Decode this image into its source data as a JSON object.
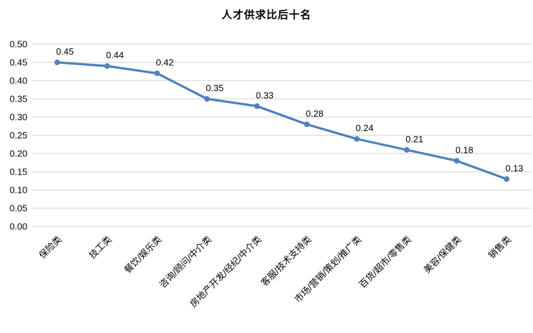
{
  "chart_data": {
    "type": "line",
    "title": "人才供求比后十名",
    "categories": [
      "保险类",
      "技工类",
      "餐饮/娱乐类",
      "咨询/顾问/中介类",
      "房地产开发/经纪/中介类",
      "客服/技术支持类",
      "市场/营销/策划/推广类",
      "百货/超市/零售类",
      "美容/保健类",
      "销售类"
    ],
    "values": [
      0.45,
      0.44,
      0.42,
      0.35,
      0.33,
      0.28,
      0.24,
      0.21,
      0.18,
      0.13
    ],
    "data_labels": [
      "0.45",
      "0.44",
      "0.42",
      "0.35",
      "0.33",
      "0.28",
      "0.24",
      "0.21",
      "0.18",
      "0.13"
    ],
    "xlabel": "",
    "ylabel": "",
    "ylim": [
      0.0,
      0.5
    ],
    "ytick_step": 0.05,
    "ytick_labels": [
      "0.00",
      "0.05",
      "0.10",
      "0.15",
      "0.20",
      "0.25",
      "0.30",
      "0.35",
      "0.40",
      "0.45",
      "0.50"
    ],
    "grid": true,
    "legend_position": "none",
    "x_label_rotation_deg": -45,
    "colors": {
      "line": "#4F81BD",
      "marker": "#4F81BD",
      "gridline": "#D9D9D9",
      "text": "#000000",
      "background": "#FFFFFF"
    }
  }
}
